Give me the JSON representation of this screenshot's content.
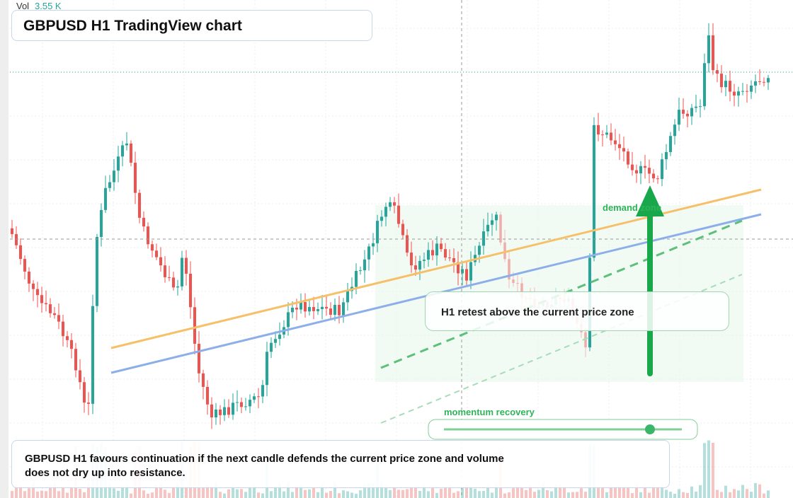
{
  "header": {
    "vol_label": "Vol",
    "vol_value": "3.55 K"
  },
  "title": "GBPUSD H1 TradingView chart",
  "annotations": {
    "demand": "demand zone",
    "retest": "H1 retest above the current price zone",
    "momentum": "momentum recovery"
  },
  "caption": "GBPUSD H1 favours continuation if the next candle defends the current price zone and volume does not dry up into resistance."
}
